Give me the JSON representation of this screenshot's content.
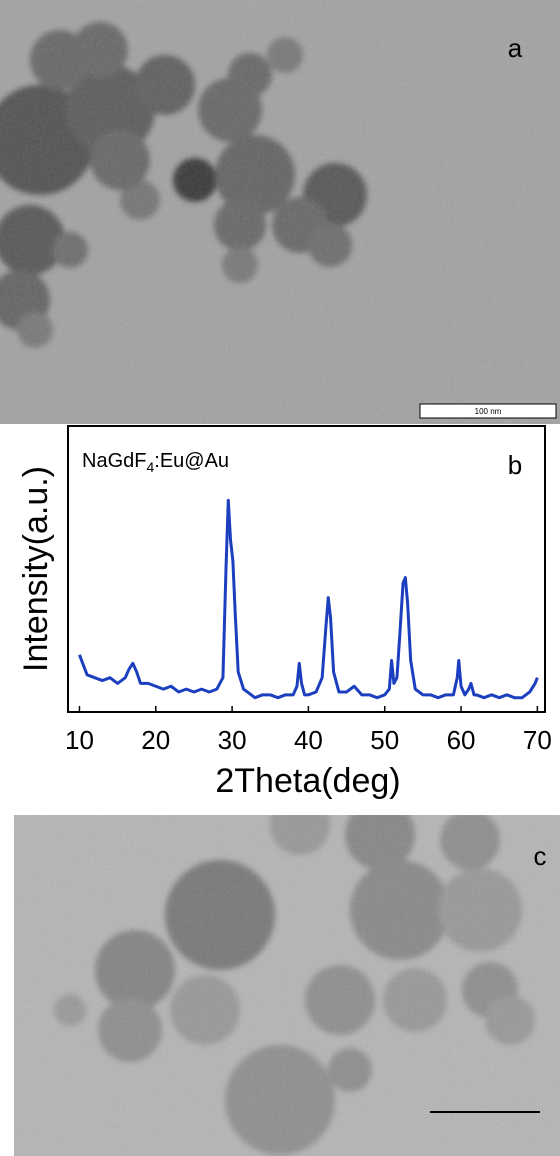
{
  "panel_a": {
    "label": "a",
    "scale_bar_label": "100 nm"
  },
  "chart_data": {
    "type": "line",
    "panel_label": "b",
    "annotation": {
      "base": "NaGdF",
      "sub": "4",
      "rest": ":Eu@Au"
    },
    "xlabel": "2Theta(deg)",
    "ylabel": "Intensity(a.u.)",
    "x": [
      10,
      11,
      12,
      13,
      14,
      15,
      16,
      16.5,
      17,
      17.5,
      18,
      19,
      20,
      21,
      22,
      23,
      24,
      25,
      26,
      27,
      28,
      28.8,
      29.2,
      29.5,
      29.8,
      30.1,
      30.4,
      30.8,
      31.5,
      32,
      33,
      34,
      35,
      36,
      37,
      38,
      38.5,
      38.8,
      39.1,
      39.5,
      40,
      41,
      41.8,
      42.3,
      42.6,
      42.9,
      43.3,
      44,
      45,
      46,
      47,
      48,
      49,
      50,
      50.6,
      50.9,
      51.2,
      51.6,
      52,
      52.4,
      52.7,
      53,
      53.4,
      54,
      55,
      56,
      57,
      58,
      59,
      59.5,
      59.7,
      60,
      60.5,
      61,
      61.3,
      61.7,
      62,
      63,
      64,
      65,
      66,
      67,
      68,
      69,
      69.7,
      70
    ],
    "series": [
      {
        "color": "#1c3fbf",
        "values": [
          20,
          13,
          12,
          11,
          12,
          10,
          12,
          15,
          17,
          14,
          10,
          10,
          9,
          8,
          9,
          7,
          8,
          7,
          8,
          7,
          8,
          12,
          50,
          74,
          60,
          53,
          35,
          14,
          8,
          7,
          5,
          6,
          6,
          5,
          6,
          6,
          9,
          17,
          10,
          6,
          6,
          7,
          12,
          30,
          40,
          33,
          14,
          7,
          7,
          9,
          6,
          6,
          5,
          6,
          8,
          18,
          10,
          12,
          28,
          45,
          47,
          38,
          18,
          8,
          6,
          6,
          5,
          6,
          6,
          12,
          18,
          9,
          6,
          8,
          10,
          6,
          6,
          5,
          6,
          5,
          6,
          5,
          5,
          7,
          10,
          12
        ]
      }
    ],
    "xlim": [
      8.5,
      71
    ],
    "ylim": [
      0,
      100
    ],
    "xticks": [
      10,
      20,
      30,
      40,
      50,
      60,
      70
    ]
  },
  "panel_c": {
    "label": "c"
  }
}
